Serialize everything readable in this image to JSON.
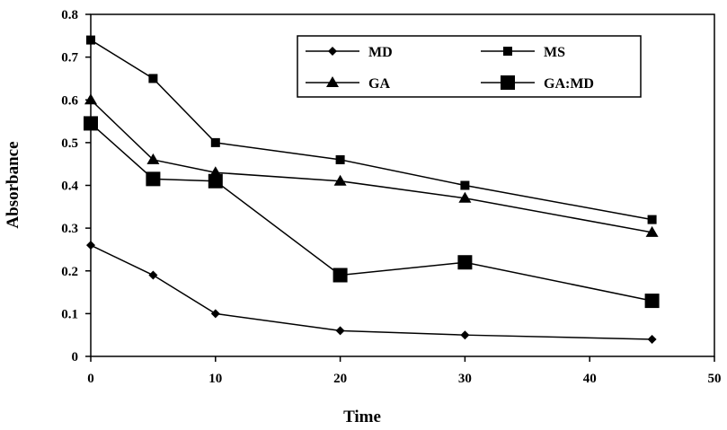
{
  "chart_data": {
    "type": "line",
    "xlabel": "Time",
    "ylabel": "Absorbance",
    "xlim": [
      0,
      50
    ],
    "ylim": [
      0,
      0.8
    ],
    "xticks": [
      0,
      10,
      20,
      30,
      40,
      50
    ],
    "yticks": [
      0,
      0.1,
      0.2,
      0.3,
      0.4,
      0.5,
      0.6,
      0.7,
      0.8
    ],
    "ytick_labels": [
      "0",
      "0.1",
      "0.2",
      "0.3",
      "0.4",
      "0.5",
      "0.6",
      "0.7",
      "0.8"
    ],
    "grid": false,
    "legend_position": "top-right",
    "series": [
      {
        "name": "MD",
        "marker": "diamond",
        "x": [
          0,
          5,
          10,
          20,
          30,
          45
        ],
        "y": [
          0.26,
          0.19,
          0.1,
          0.06,
          0.05,
          0.04
        ]
      },
      {
        "name": "MS",
        "marker": "small-square",
        "x": [
          0,
          5,
          10,
          20,
          30,
          45
        ],
        "y": [
          0.74,
          0.65,
          0.5,
          0.46,
          0.4,
          0.32
        ]
      },
      {
        "name": "GA",
        "marker": "triangle",
        "x": [
          0,
          5,
          10,
          20,
          30,
          45
        ],
        "y": [
          0.6,
          0.46,
          0.43,
          0.41,
          0.37,
          0.29
        ]
      },
      {
        "name": "GA:MD",
        "marker": "large-square",
        "x": [
          0,
          5,
          10,
          20,
          30,
          45
        ],
        "y": [
          0.545,
          0.415,
          0.41,
          0.19,
          0.22,
          0.13
        ]
      }
    ],
    "colors": {
      "line": "#000000",
      "marker": "#000000"
    }
  }
}
